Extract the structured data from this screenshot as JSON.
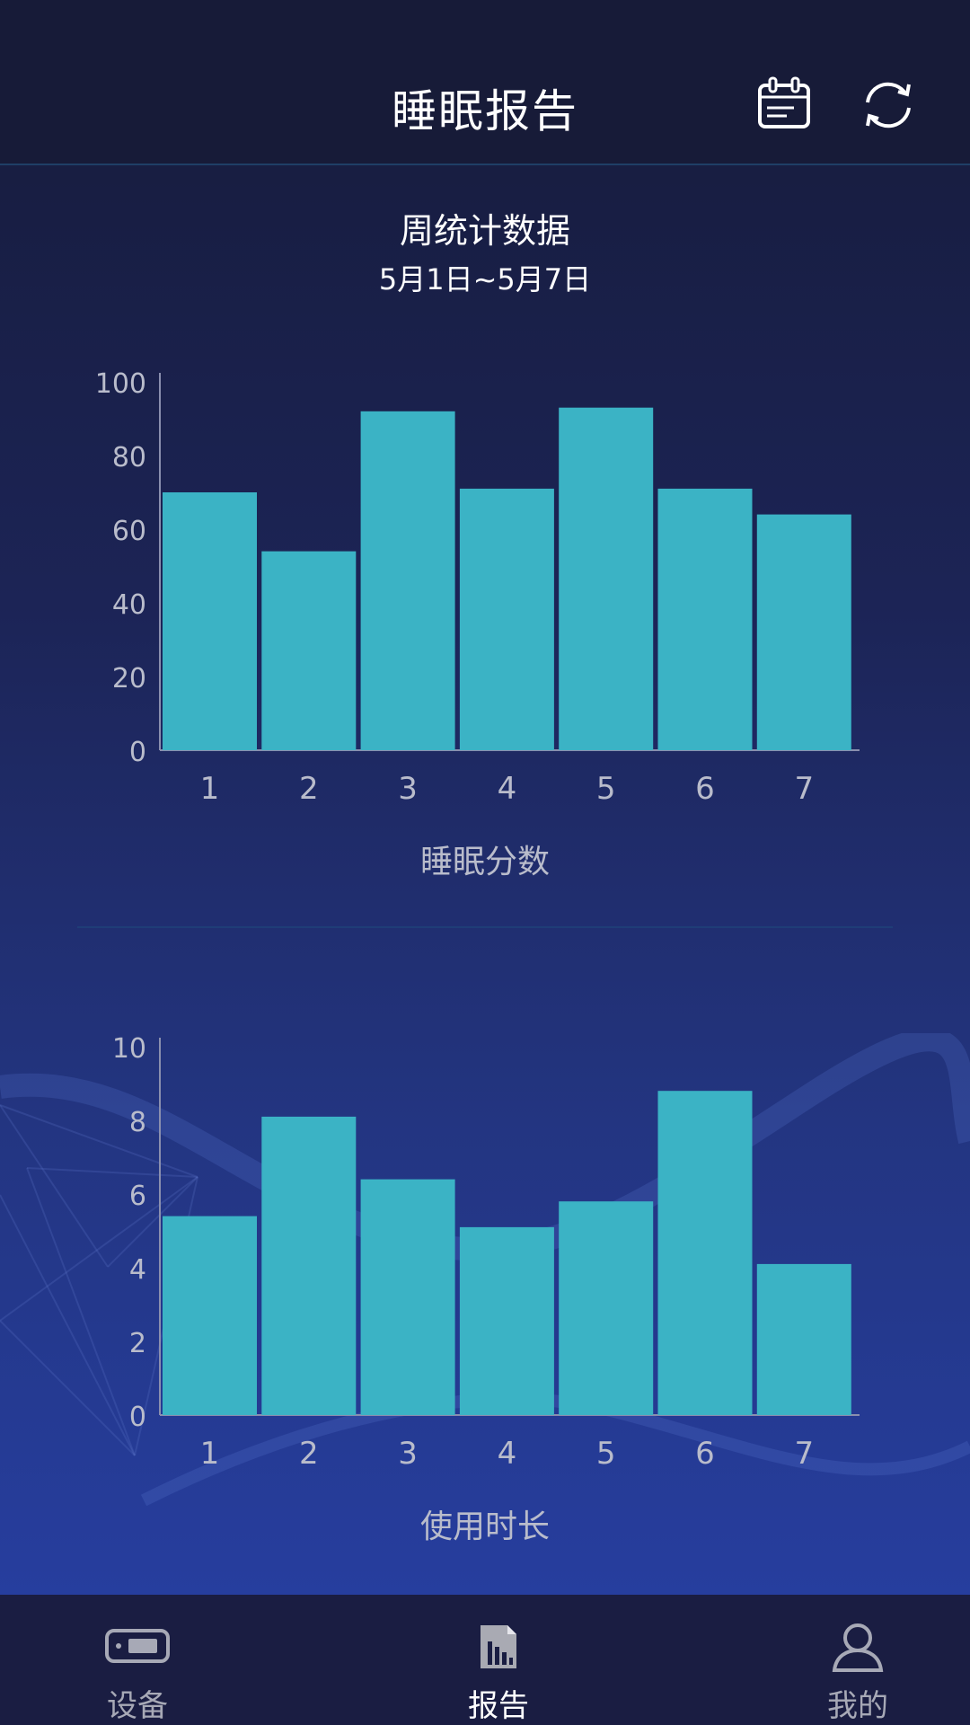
{
  "header": {
    "title": "睡眠报告",
    "calendar_icon": "calendar-icon",
    "refresh_icon": "refresh-icon"
  },
  "summary": {
    "title": "周统计数据",
    "date_range": "5月1日~5月7日"
  },
  "colors": {
    "bar": "#3bb3c5",
    "axis_text": "#b9bccb",
    "header_bg": "#171b38",
    "tabbar_bg": "#1a1d42"
  },
  "chart_data": [
    {
      "type": "bar",
      "categories": [
        "1",
        "2",
        "3",
        "4",
        "5",
        "6",
        "7"
      ],
      "values": [
        70,
        54,
        92,
        71,
        93,
        71,
        64
      ],
      "title": "",
      "xlabel": "睡眠分数",
      "ylabel": "",
      "ylim": [
        0,
        100
      ],
      "yticks": [
        "0",
        "20",
        "40",
        "60",
        "80",
        "100"
      ],
      "grid": false
    },
    {
      "type": "bar",
      "categories": [
        "1",
        "2",
        "3",
        "4",
        "5",
        "6",
        "7"
      ],
      "values": [
        5.4,
        8.1,
        6.4,
        5.1,
        5.8,
        8.8,
        4.1
      ],
      "title": "",
      "xlabel": "使用时长",
      "ylabel": "",
      "ylim": [
        0,
        10
      ],
      "yticks": [
        "0",
        "2",
        "4",
        "6",
        "8",
        "10"
      ],
      "grid": false
    }
  ],
  "tabbar": {
    "items": [
      {
        "label": "设备",
        "icon": "device-icon",
        "active": false
      },
      {
        "label": "报告",
        "icon": "report-icon",
        "active": true
      },
      {
        "label": "我的",
        "icon": "user-icon",
        "active": false
      }
    ]
  }
}
